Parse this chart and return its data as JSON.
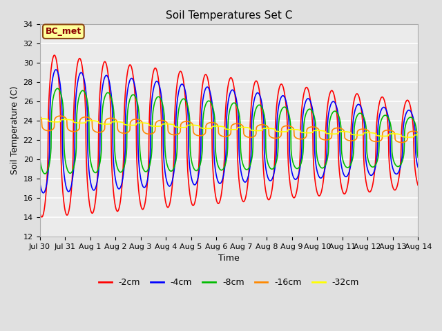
{
  "title": "Soil Temperatures Set C",
  "xlabel": "Time",
  "ylabel": "Soil Temperature (C)",
  "ylim": [
    12,
    34
  ],
  "yticks": [
    12,
    14,
    16,
    18,
    20,
    22,
    24,
    26,
    28,
    30,
    32,
    34
  ],
  "xtick_labels": [
    "Jul 30",
    "Jul 31",
    "Aug 1",
    "Aug 2",
    "Aug 3",
    "Aug 4",
    "Aug 5",
    "Aug 6",
    "Aug 7",
    "Aug 8",
    "Aug 9",
    "Aug 10",
    "Aug 11",
    "Aug 12",
    "Aug 13",
    "Aug 14"
  ],
  "series": [
    {
      "label": "-2cm",
      "color": "#ff0000"
    },
    {
      "label": "-4cm",
      "color": "#0000ff"
    },
    {
      "label": "-8cm",
      "color": "#00bb00"
    },
    {
      "label": "-16cm",
      "color": "#ff8800"
    },
    {
      "label": "-32cm",
      "color": "#ffff00"
    }
  ],
  "annotation_text": "BC_met",
  "annotation_bg": "#ffff99",
  "annotation_border": "#8B4513",
  "bg_color": "#e0e0e0",
  "plot_bg": "#ebebeb",
  "grid_color": "#ffffff",
  "title_fontsize": 11,
  "label_fontsize": 9,
  "tick_fontsize": 8,
  "legend_fontsize": 9,
  "days": 15,
  "period_hours": 24
}
